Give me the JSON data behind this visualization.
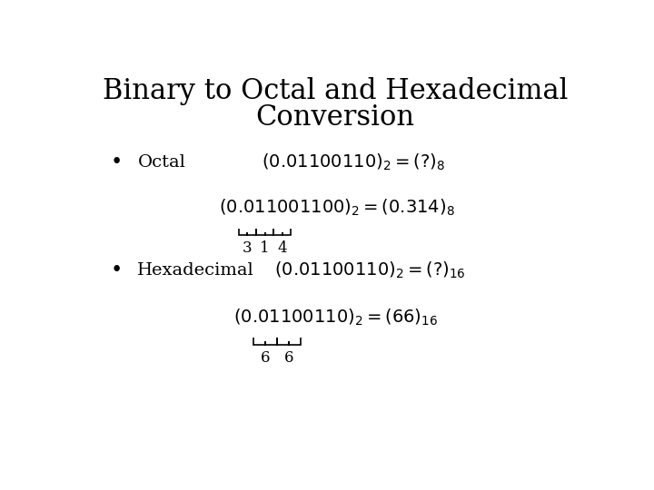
{
  "title_line1": "Binary to Octal and Hexadecimal",
  "title_line2": "Conversion",
  "title_fontsize": 22,
  "body_fontsize": 14,
  "sub_fontsize": 12,
  "bg_color": "#ffffff",
  "text_color": "#000000"
}
